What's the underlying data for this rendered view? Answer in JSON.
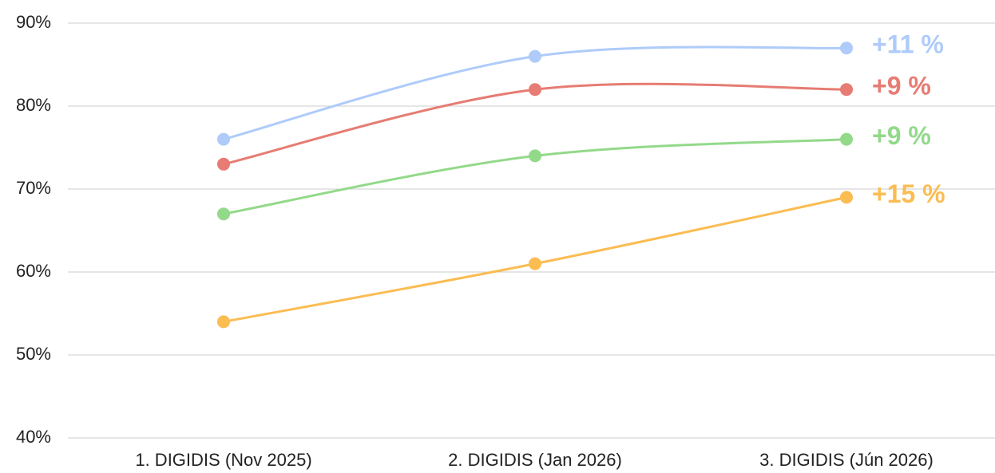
{
  "chart_data": {
    "type": "line",
    "categories": [
      "1. DIGIDIS (Nov 2025)",
      "2. DIGIDIS (Jan 2026)",
      "3. DIGIDIS (Jún 2026)"
    ],
    "series": [
      {
        "color": "#aecbfa",
        "values": [
          76,
          86,
          87
        ],
        "end_label": "+11 %"
      },
      {
        "color": "#e67c73",
        "values": [
          73,
          82,
          82
        ],
        "end_label": "+9 %"
      },
      {
        "color": "#93d98a",
        "values": [
          67,
          74,
          76
        ],
        "end_label": "+9 %"
      },
      {
        "color": "#fbbc52",
        "values": [
          54,
          61,
          69
        ],
        "end_label": "+15 %"
      }
    ],
    "ylim": [
      40,
      90
    ],
    "yticks": [
      {
        "value": 40,
        "label": "40%"
      },
      {
        "value": 50,
        "label": "50%"
      },
      {
        "value": 60,
        "label": "60%"
      },
      {
        "value": 70,
        "label": "70%"
      },
      {
        "value": 80,
        "label": "80%"
      },
      {
        "value": 90,
        "label": "90%"
      }
    ],
    "grid": true
  }
}
